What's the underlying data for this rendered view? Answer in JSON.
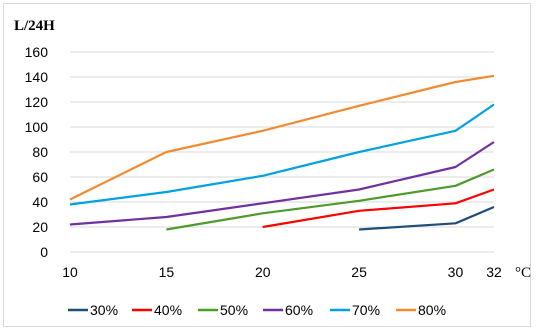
{
  "chart_data": {
    "type": "line",
    "ylabel": "L/24H",
    "xunit": "°C",
    "x_ticks": [
      "10",
      "15",
      "20",
      "25",
      "30",
      "32"
    ],
    "y_ticks": [
      "0",
      "20",
      "40",
      "60",
      "80",
      "100",
      "120",
      "140",
      "160"
    ],
    "xlim": [
      10,
      32
    ],
    "ylim": [
      0,
      160
    ],
    "grid": "horizontal",
    "legend_position": "bottom",
    "series": [
      {
        "name": "30%",
        "color": "#1f4e79",
        "points": [
          [
            25,
            18
          ],
          [
            30,
            23
          ],
          [
            32,
            36
          ]
        ]
      },
      {
        "name": "40%",
        "color": "#ff0000",
        "points": [
          [
            20,
            20
          ],
          [
            25,
            33
          ],
          [
            30,
            39
          ],
          [
            32,
            50
          ]
        ]
      },
      {
        "name": "50%",
        "color": "#4e9a2c",
        "points": [
          [
            15,
            18
          ],
          [
            20,
            31
          ],
          [
            25,
            41
          ],
          [
            30,
            53
          ],
          [
            32,
            66
          ]
        ]
      },
      {
        "name": "60%",
        "color": "#7030a0",
        "points": [
          [
            10,
            22
          ],
          [
            15,
            28
          ],
          [
            20,
            39
          ],
          [
            25,
            50
          ],
          [
            30,
            68
          ],
          [
            32,
            88
          ]
        ]
      },
      {
        "name": "70%",
        "color": "#00a2e0",
        "points": [
          [
            10,
            38
          ],
          [
            15,
            48
          ],
          [
            20,
            61
          ],
          [
            25,
            80
          ],
          [
            30,
            97
          ],
          [
            32,
            118
          ]
        ]
      },
      {
        "name": "80%",
        "color": "#f28a30",
        "points": [
          [
            10,
            42
          ],
          [
            15,
            80
          ],
          [
            20,
            97
          ],
          [
            25,
            117
          ],
          [
            30,
            136
          ],
          [
            32,
            141
          ]
        ]
      }
    ]
  }
}
